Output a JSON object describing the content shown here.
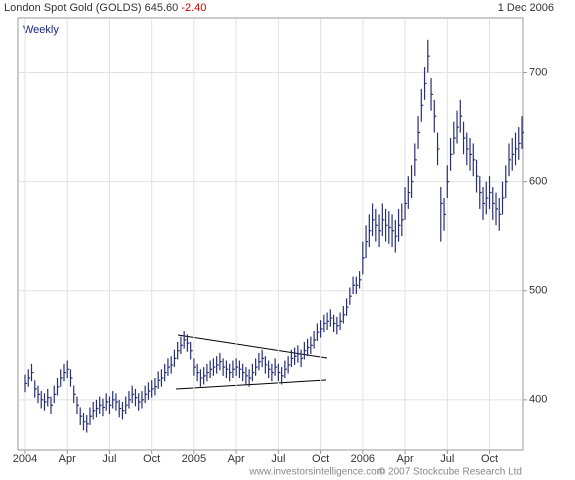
{
  "chart_data": {
    "type": "ohlc",
    "title": "London Spot Gold (GOLDS) 645.60",
    "change": "-2.40",
    "date": "1 Dec 2006",
    "subtitle": "Weekly",
    "footer": [
      "www.investorsintelligence.com",
      "© 2007 Stockcube Research Ltd"
    ],
    "color": "#283075",
    "change_color": "#cc0000",
    "grid": true,
    "ylim": [
      354,
      750
    ],
    "yticks": [
      400,
      500,
      600,
      700
    ],
    "categories": [
      "2004",
      null,
      null,
      null,
      null,
      null,
      null,
      null,
      null,
      null,
      null,
      null,
      null,
      "Apr",
      null,
      null,
      null,
      null,
      null,
      null,
      null,
      null,
      null,
      null,
      null,
      null,
      "Jul",
      null,
      null,
      null,
      null,
      null,
      null,
      null,
      null,
      null,
      null,
      null,
      null,
      "Oct",
      null,
      null,
      null,
      null,
      null,
      null,
      null,
      null,
      null,
      null,
      null,
      null,
      "2005",
      null,
      null,
      null,
      null,
      null,
      null,
      null,
      null,
      null,
      null,
      null,
      null,
      "Apr",
      null,
      null,
      null,
      null,
      null,
      null,
      null,
      null,
      null,
      null,
      null,
      null,
      "Jul",
      null,
      null,
      null,
      null,
      null,
      null,
      null,
      null,
      null,
      null,
      null,
      null,
      "Oct",
      null,
      null,
      null,
      null,
      null,
      null,
      null,
      null,
      null,
      null,
      null,
      null,
      "2006",
      null,
      null,
      null,
      null,
      null,
      null,
      null,
      null,
      null,
      null,
      null,
      null,
      "Apr",
      null,
      null,
      null,
      null,
      null,
      null,
      null,
      null,
      null,
      null,
      null,
      null,
      "Jul",
      null,
      null,
      null,
      null,
      null,
      null,
      null,
      null,
      null,
      null,
      null,
      null,
      "Oct",
      null,
      null,
      null,
      null,
      null,
      null,
      null,
      null,
      null,
      null
    ],
    "high": [
      423,
      428,
      433,
      418,
      413,
      408,
      406,
      410,
      403,
      413,
      420,
      428,
      433,
      436,
      428,
      413,
      403,
      393,
      388,
      386,
      393,
      398,
      400,
      403,
      401,
      406,
      403,
      408,
      406,
      400,
      398,
      403,
      408,
      413,
      410,
      406,
      408,
      413,
      416,
      418,
      420,
      426,
      428,
      433,
      438,
      440,
      446,
      453,
      458,
      463,
      460,
      453,
      438,
      433,
      428,
      430,
      433,
      436,
      438,
      440,
      443,
      438,
      436,
      433,
      436,
      438,
      436,
      433,
      430,
      428,
      433,
      438,
      443,
      446,
      440,
      436,
      433,
      438,
      433,
      430,
      436,
      440,
      446,
      448,
      450,
      446,
      453,
      456,
      458,
      463,
      470,
      473,
      478,
      480,
      483,
      478,
      476,
      480,
      486,
      493,
      503,
      513,
      513,
      518,
      545,
      560,
      570,
      580,
      575,
      570,
      580,
      575,
      573,
      570,
      565,
      575,
      580,
      595,
      605,
      615,
      635,
      660,
      685,
      705,
      730,
      695,
      675,
      645,
      595,
      585,
      615,
      640,
      655,
      665,
      675,
      655,
      645,
      640,
      635,
      620,
      605,
      595,
      600,
      605,
      595,
      590,
      585,
      600,
      615,
      635,
      640,
      645,
      650,
      660
    ],
    "low": [
      407,
      412,
      417,
      402,
      397,
      392,
      390,
      394,
      387,
      397,
      404,
      412,
      417,
      420,
      412,
      397,
      387,
      377,
      372,
      370,
      377,
      382,
      384,
      387,
      385,
      390,
      387,
      392,
      390,
      384,
      382,
      387,
      392,
      397,
      394,
      390,
      392,
      397,
      400,
      402,
      404,
      410,
      412,
      417,
      422,
      424,
      430,
      437,
      442,
      447,
      444,
      437,
      422,
      417,
      412,
      414,
      417,
      420,
      422,
      424,
      427,
      422,
      420,
      417,
      420,
      422,
      420,
      417,
      414,
      412,
      417,
      422,
      427,
      430,
      424,
      420,
      417,
      422,
      417,
      414,
      420,
      424,
      430,
      432,
      434,
      430,
      437,
      440,
      442,
      447,
      454,
      457,
      462,
      464,
      467,
      462,
      460,
      464,
      470,
      477,
      487,
      497,
      497,
      502,
      515,
      530,
      540,
      550,
      545,
      540,
      550,
      545,
      543,
      540,
      535,
      545,
      550,
      565,
      575,
      585,
      605,
      630,
      655,
      675,
      700,
      665,
      645,
      615,
      545,
      555,
      585,
      610,
      625,
      635,
      645,
      625,
      615,
      610,
      605,
      590,
      575,
      565,
      570,
      575,
      565,
      560,
      555,
      570,
      585,
      605,
      610,
      615,
      620,
      630
    ],
    "close": [
      415,
      420,
      425,
      410,
      405,
      400,
      398,
      402,
      395,
      405,
      412,
      420,
      425,
      428,
      420,
      405,
      395,
      385,
      380,
      378,
      385,
      390,
      392,
      395,
      393,
      398,
      395,
      400,
      398,
      392,
      390,
      395,
      400,
      405,
      402,
      398,
      400,
      405,
      408,
      410,
      412,
      418,
      420,
      425,
      430,
      432,
      438,
      445,
      450,
      455,
      452,
      445,
      430,
      425,
      420,
      422,
      425,
      428,
      430,
      432,
      435,
      430,
      428,
      425,
      428,
      430,
      428,
      425,
      422,
      420,
      425,
      430,
      435,
      438,
      432,
      428,
      425,
      430,
      425,
      422,
      428,
      432,
      438,
      440,
      442,
      438,
      445,
      448,
      450,
      455,
      462,
      465,
      470,
      472,
      475,
      470,
      468,
      472,
      478,
      485,
      495,
      505,
      505,
      510,
      530,
      545,
      555,
      565,
      560,
      555,
      565,
      560,
      558,
      555,
      550,
      560,
      565,
      580,
      590,
      600,
      620,
      645,
      670,
      690,
      715,
      680,
      660,
      630,
      580,
      570,
      600,
      625,
      640,
      650,
      660,
      640,
      630,
      625,
      620,
      605,
      590,
      580,
      585,
      590,
      580,
      575,
      570,
      585,
      600,
      620,
      625,
      630,
      635,
      645
    ]
  }
}
